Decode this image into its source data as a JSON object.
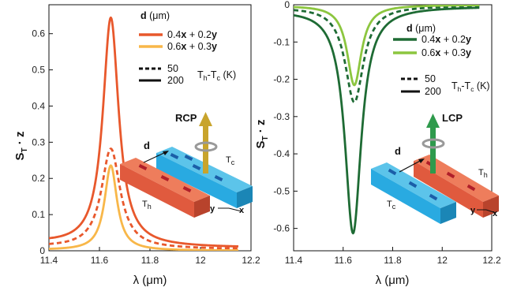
{
  "colors": {
    "left_200": "#e8582c",
    "left_50": "#f8b749",
    "right_200": "#1e6b34",
    "right_50": "#8cc63f",
    "blue_bar": "#29aae1",
    "red_bar": "#e05a3e",
    "rcp_arrow": "#c8a42c",
    "lcp_arrow": "#2e9a4c"
  },
  "chart_data": [
    {
      "type": "line",
      "panel": "left",
      "xlabel": "λ (μm)",
      "ylabel_main": "S",
      "ylabel_sub": "T",
      "ylabel_rest": " · z",
      "xlim": [
        11.4,
        12.2
      ],
      "ylim": [
        0,
        0.68
      ],
      "xticks": [
        11.4,
        11.6,
        11.8,
        12,
        12.2
      ],
      "yticks": [
        0,
        0.1,
        0.2,
        0.3,
        0.4,
        0.5,
        0.6
      ],
      "legend": {
        "title_bold": "d",
        "title_rest": " (μm)",
        "entries": [
          {
            "a": "0.4",
            "b": "0.2",
            "color": "#e8582c"
          },
          {
            "a": "0.6",
            "b": "0.3",
            "color": "#f8b749"
          }
        ],
        "x_sym": "x",
        "y_sym": "y",
        "line_styles": [
          {
            "label": "50",
            "dashed": true
          },
          {
            "label": "200",
            "dashed": false
          }
        ],
        "temp_label_a": "T",
        "temp_sub_h": "h",
        "temp_dash": "-T",
        "temp_sub_c": "c",
        "temp_unit": " (K)"
      },
      "series": [
        {
          "key": "a200",
          "color": "#e8582c",
          "dashed": false,
          "peak_x": 11.645,
          "peak_y": 0.64,
          "width": 0.038,
          "baseline": 0.008,
          "tail": 0.012
        },
        {
          "key": "a50",
          "color": "#e8582c",
          "dashed": true,
          "peak_x": 11.645,
          "peak_y": 0.28,
          "width": 0.045,
          "baseline": 0.004,
          "tail": 0.006
        },
        {
          "key": "b200",
          "color": "#f8b749",
          "dashed": false,
          "peak_x": 11.645,
          "peak_y": 0.235,
          "width": 0.03,
          "baseline": 0.0,
          "tail": 0.002
        }
      ],
      "inset": {
        "pol": "RCP",
        "d": "d",
        "hot": {
          "main": "T",
          "sub": "h"
        },
        "cold": {
          "main": "T",
          "sub": "c"
        },
        "axis_y": "y",
        "axis_x": "x"
      }
    },
    {
      "type": "line",
      "panel": "right",
      "xlabel": "λ (μm)",
      "ylabel_main": "S",
      "ylabel_sub": "T",
      "ylabel_rest": " · z",
      "xlim": [
        11.4,
        12.2
      ],
      "ylim": [
        -0.66,
        0
      ],
      "xticks": [
        11.4,
        11.6,
        11.8,
        12,
        12.2
      ],
      "yticks": [
        0,
        -0.1,
        -0.2,
        -0.3,
        -0.4,
        -0.5,
        -0.6
      ],
      "legend": {
        "title_bold": "d",
        "title_rest": " (μm)",
        "entries": [
          {
            "a": "0.4",
            "b": "0.2",
            "color": "#1e6b34"
          },
          {
            "a": "0.6",
            "b": "0.3",
            "color": "#8cc63f"
          }
        ],
        "x_sym": "x",
        "y_sym": "y",
        "line_styles": [
          {
            "label": "50",
            "dashed": true
          },
          {
            "label": "200",
            "dashed": false
          }
        ],
        "temp_label_a": "T",
        "temp_sub_h": "h",
        "temp_dash": "-T",
        "temp_sub_c": "c",
        "temp_unit": " (K)"
      },
      "series": [
        {
          "key": "a200",
          "color": "#1e6b34",
          "dashed": false,
          "peak_x": 11.64,
          "peak_y": -0.61,
          "width": 0.04,
          "baseline": -0.004,
          "tail": -0.008
        },
        {
          "key": "a50",
          "color": "#1e6b34",
          "dashed": true,
          "peak_x": 11.645,
          "peak_y": -0.26,
          "width": 0.045,
          "baseline": -0.002,
          "tail": -0.004
        },
        {
          "key": "b200",
          "color": "#8cc63f",
          "dashed": false,
          "peak_x": 11.645,
          "peak_y": -0.215,
          "width": 0.035,
          "baseline": 0.0,
          "tail": -0.002
        }
      ],
      "inset": {
        "pol": "LCP",
        "d": "d",
        "hot": {
          "main": "T",
          "sub": "h"
        },
        "cold": {
          "main": "T",
          "sub": "c"
        },
        "axis_y": "y",
        "axis_x": "x"
      }
    }
  ]
}
